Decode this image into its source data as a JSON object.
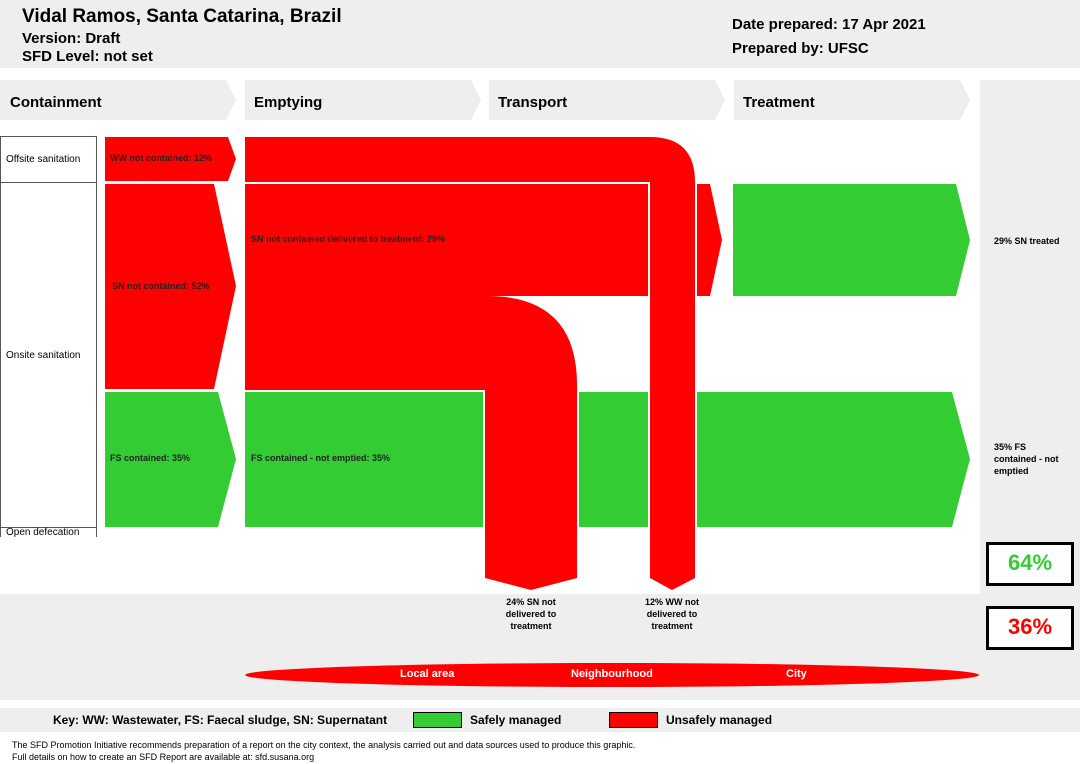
{
  "header": {
    "title": "Vidal Ramos, Santa Catarina, Brazil",
    "version": "Version: Draft",
    "sfd_level": "SFD Level: not set",
    "date_prepared": "Date prepared: 17 Apr 2021",
    "prepared_by": "Prepared by: UFSC"
  },
  "stages": {
    "containment": "Containment",
    "emptying": "Emptying",
    "transport": "Transport",
    "treatment": "Treatment"
  },
  "sources": {
    "offsite": "Offsite sanitation",
    "onsite": "Onsite sanitation",
    "open_defecation": "Open defecation"
  },
  "flows": {
    "ww_not_contained": "WW not contained: 12%",
    "sn_not_contained": "SN not contained: 52%",
    "fs_contained": "FS contained: 35%",
    "sn_delivered": "SN not contained delivered to treatment: 29%",
    "fs_not_emptied": "FS contained - not emptied: 35%"
  },
  "outcomes": {
    "sn_treated": "29% SN treated",
    "fs_contained_not_emptied": "35% FS contained - not emptied"
  },
  "drops": {
    "sn_not_delivered": "24% SN not delivered to treatment",
    "ww_not_delivered": "12% WW not delivered to treatment"
  },
  "totals": {
    "safe": "64%",
    "unsafe": "36%"
  },
  "areas": {
    "local": "Local area",
    "neighbourhood": "Neighbourhood",
    "city": "City"
  },
  "key": {
    "text": "Key: WW: Wastewater, FS: Faecal sludge, SN: Supernatant",
    "safe": "Safely managed",
    "unsafe": "Unsafely managed"
  },
  "footer": {
    "line1": "The SFD Promotion Initiative recommends preparation of a report on the city context, the analysis carried out and data sources used to produce this graphic.",
    "line2": "Full details on how to create an SFD Report are available at: sfd.susana.org"
  },
  "colors": {
    "safe": "#33cc33",
    "unsafe": "#ff0000",
    "panel": "#eeeeee"
  }
}
